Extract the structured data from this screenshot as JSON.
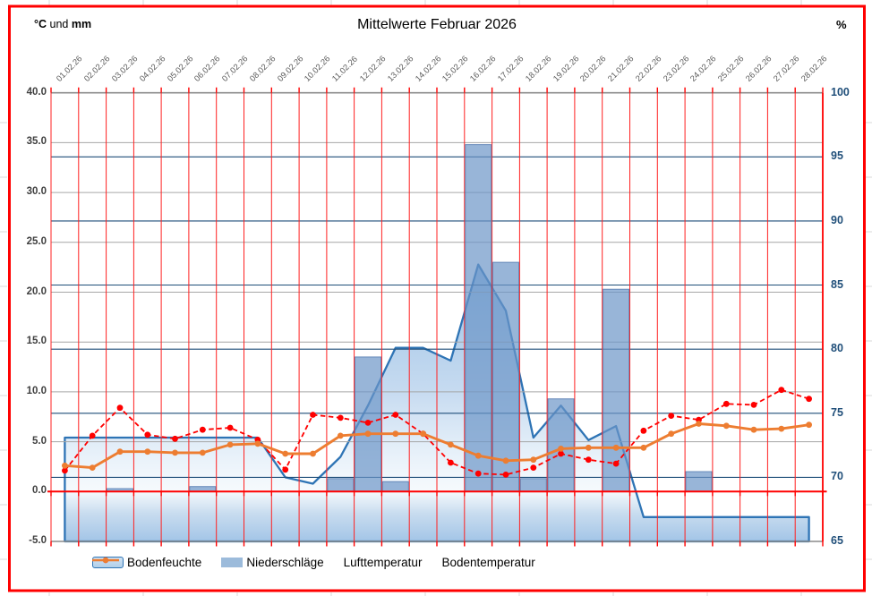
{
  "header": {
    "title": "Mittelwerte Februar 2026",
    "left_axis_unit": {
      "part1": "°C",
      "part2": "und",
      "part3": "mm"
    },
    "right_axis_unit": "%"
  },
  "legend": {
    "items": [
      {
        "label": "Bodenfeuchte",
        "swatch": "area-swatch"
      },
      {
        "label": "Niederschläge",
        "swatch": "bar-swatch"
      },
      {
        "label": "Lufttemperatur",
        "swatch": "red-dashed-line-swatch"
      },
      {
        "label": "Bodentemperatur",
        "swatch": "orange-line-swatch"
      }
    ]
  },
  "colors": {
    "frame_red": "#FF0000",
    "day_gridline_red": "#FF2020",
    "zero_line_red": "#FF0000",
    "left_gridline_gray": "#A6A6A6",
    "plot_border_gray": "#8C8C8C",
    "right_gridline_navy": "#1F4E79",
    "left_tick_text": "#3F3F3F",
    "right_tick_text": "#1F4E79",
    "date_text": "#595959",
    "area_outline_blue": "#2E74B5",
    "area_fill_top": "#9BC1E5",
    "area_fill_light": "#F6FAFD",
    "bar_blue": "#9CBBDB",
    "luft_red": "#FF0000",
    "boden_orange": "#ED7D31",
    "excel_margin_gridline": "#D9D9D9"
  },
  "chart_data": {
    "type": "combo",
    "title": "Mittelwerte Februar 2026",
    "categories": [
      "01.02.26",
      "02.02.26",
      "03.02.26",
      "04.02.26",
      "05.02.26",
      "06.02.26",
      "07.02.26",
      "08.02.26",
      "09.02.26",
      "10.02.26",
      "11.02.26",
      "12.02.26",
      "13.02.26",
      "14.02.26",
      "15.02.26",
      "16.02.26",
      "17.02.26",
      "18.02.26",
      "19.02.26",
      "20.02.26",
      "21.02.26",
      "22.02.26",
      "23.02.26",
      "24.02.26",
      "25.02.26",
      "26.02.26",
      "27.02.26",
      "28.02.26"
    ],
    "axes": {
      "left": {
        "label": "°C und mm",
        "min": -5,
        "max": 40,
        "step": 5,
        "tick_labels": [
          "40.0",
          "35.0",
          "30.0",
          "25.0",
          "20.0",
          "15.0",
          "10.0",
          "5.0",
          "0.0",
          "-5.0"
        ],
        "tick_values": [
          40,
          35,
          30,
          25,
          20,
          15,
          10,
          5,
          0,
          -5
        ]
      },
      "right": {
        "label": "%",
        "min": 65,
        "max": 100,
        "step": 5,
        "tick_labels": [
          "100",
          "95",
          "90",
          "85",
          "80",
          "75",
          "70",
          "65"
        ],
        "tick_values": [
          100,
          95,
          90,
          85,
          80,
          75,
          70,
          65
        ]
      }
    },
    "gridlines": {
      "vertical_red_per_day": true,
      "horizontal_gray_left_axis": true,
      "horizontal_navy_right_axis": true,
      "zero_line_red": true
    },
    "legend_position": "bottom",
    "series": [
      {
        "name": "Bodenfeuchte",
        "type": "area",
        "axis": "right",
        "unit": "%",
        "line_color": "#2E74B5",
        "fill": "blue-gradient",
        "values": [
          73.1,
          73.1,
          73.1,
          73.1,
          73.1,
          73.1,
          73.1,
          73.1,
          70.0,
          69.5,
          71.6,
          75.6,
          80.1,
          80.1,
          79.1,
          86.6,
          83.0,
          73.1,
          75.6,
          72.9,
          74.0,
          66.9,
          66.9,
          66.9,
          66.9,
          66.9,
          66.9,
          66.9
        ]
      },
      {
        "name": "Niederschläge",
        "type": "bar",
        "axis": "left",
        "unit": "mm",
        "color": "#9CBBDB",
        "values": [
          0,
          0,
          0.3,
          0,
          0,
          0.5,
          0,
          0,
          0,
          0,
          1.3,
          13.5,
          1.0,
          0,
          0,
          34.8,
          23.0,
          1.3,
          9.3,
          0,
          20.3,
          0,
          0,
          2.0,
          0,
          0,
          0,
          0
        ]
      },
      {
        "name": "Lufttemperatur",
        "type": "line",
        "axis": "left",
        "unit": "°C",
        "color": "#FF0000",
        "style": "dashed",
        "marker": "circle",
        "values": [
          2.1,
          5.6,
          8.4,
          5.7,
          5.3,
          6.2,
          6.4,
          5.2,
          2.2,
          7.7,
          7.4,
          6.9,
          7.7,
          5.8,
          2.9,
          1.8,
          1.7,
          2.4,
          3.8,
          3.2,
          2.8,
          6.1,
          7.6,
          7.2,
          8.8,
          8.7,
          10.2,
          9.3
        ]
      },
      {
        "name": "Bodentemperatur",
        "type": "line",
        "axis": "left",
        "unit": "°C",
        "color": "#ED7D31",
        "style": "solid",
        "marker": "circle",
        "values": [
          2.6,
          2.4,
          4.0,
          4.0,
          3.9,
          3.9,
          4.7,
          4.8,
          3.8,
          3.8,
          5.6,
          5.8,
          5.8,
          5.8,
          4.7,
          3.6,
          3.1,
          3.2,
          4.3,
          4.4,
          4.4,
          4.4,
          5.8,
          6.8,
          6.6,
          6.2,
          6.3,
          6.7
        ]
      }
    ]
  }
}
